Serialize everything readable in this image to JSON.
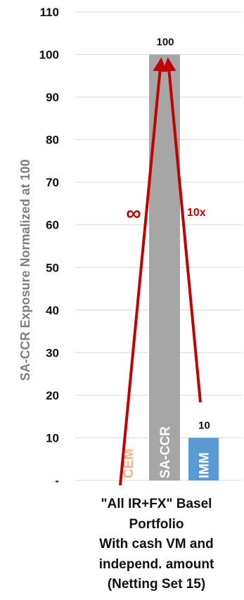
{
  "chart_data": {
    "type": "bar",
    "title": "",
    "ylabel": "SA-CCR Exposure Normalized at 100",
    "xlabel_lines": [
      "\"All IR+FX\" Basel",
      "Portfolio",
      "With cash VM and",
      "independ. amount",
      "(Netting Set 15)"
    ],
    "ylim": [
      0,
      110
    ],
    "yticks": [
      0,
      10,
      20,
      30,
      40,
      50,
      60,
      70,
      80,
      90,
      100,
      110
    ],
    "ytick_labels": [
      "-",
      "10",
      "20",
      "30",
      "40",
      "50",
      "60",
      "70",
      "80",
      "90",
      "100",
      "110"
    ],
    "grid": true,
    "bars": [
      {
        "name": "CEM",
        "value": 0,
        "data_label": "",
        "color": "#ffffff",
        "label_color": "#f4b183"
      },
      {
        "name": "SA-CCR",
        "value": 100,
        "data_label": "100",
        "color": "#a6a6a6",
        "label_color": "#ffffff"
      },
      {
        "name": "IMM",
        "value": 10,
        "data_label": "10",
        "color": "#5b9bd5",
        "label_color": "#ffffff"
      }
    ],
    "arrows": [
      {
        "label": "∞",
        "from_bar": "CEM",
        "to_bar": "SA-CCR",
        "color": "#c00000"
      },
      {
        "label": "10x",
        "from_bar": "IMM",
        "to_bar": "SA-CCR",
        "color": "#c00000"
      }
    ]
  }
}
